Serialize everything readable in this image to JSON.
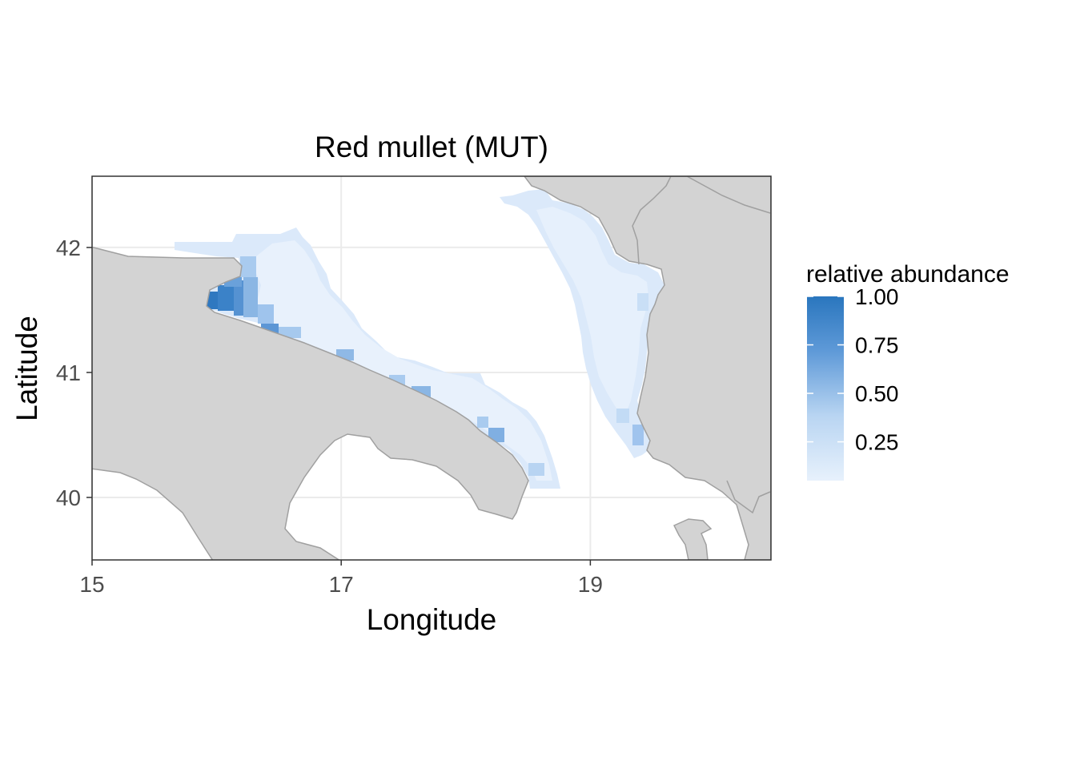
{
  "chart_data": {
    "type": "heatmap",
    "title": "Red mullet (MUT)",
    "xlabel": "Longitude",
    "ylabel": "Latitude",
    "xlim": [
      15.0,
      20.45
    ],
    "ylim": [
      39.5,
      42.57
    ],
    "x_ticks": [
      {
        "value": 15,
        "label": "15"
      },
      {
        "value": 17,
        "label": "17"
      },
      {
        "value": 19,
        "label": "19"
      }
    ],
    "y_ticks": [
      {
        "value": 40,
        "label": "40"
      },
      {
        "value": 41,
        "label": "41"
      },
      {
        "value": 42,
        "label": "42"
      }
    ],
    "grid": true,
    "land_color": "#d3d3d3",
    "land_border_color": "#a0a0a0",
    "legend": {
      "title": "relative abundance",
      "position": "right",
      "color_low": "#e7f1fc",
      "color_high": "#2a76be",
      "range": [
        0.05,
        1.0
      ],
      "ticks": [
        {
          "value": 1.0,
          "label": "1.00"
        },
        {
          "value": 0.75,
          "label": "0.75"
        },
        {
          "value": 0.5,
          "label": "0.50"
        },
        {
          "value": 0.25,
          "label": "0.25"
        }
      ]
    },
    "hotspots": [
      {
        "lon": 15.95,
        "lat": 41.55,
        "value": 0.95
      },
      {
        "lon": 16.05,
        "lat": 41.52,
        "value": 0.85
      },
      {
        "lon": 16.1,
        "lat": 41.45,
        "value": 0.75
      },
      {
        "lon": 16.2,
        "lat": 41.65,
        "value": 0.6
      },
      {
        "lon": 16.25,
        "lat": 41.4,
        "value": 0.6
      },
      {
        "lon": 16.35,
        "lat": 41.33,
        "value": 0.55
      },
      {
        "lon": 17.05,
        "lat": 41.12,
        "value": 0.4
      },
      {
        "lon": 17.65,
        "lat": 40.82,
        "value": 0.4
      },
      {
        "lon": 18.15,
        "lat": 40.52,
        "value": 0.45
      },
      {
        "lon": 19.4,
        "lat": 40.45,
        "value": 0.35
      }
    ]
  }
}
